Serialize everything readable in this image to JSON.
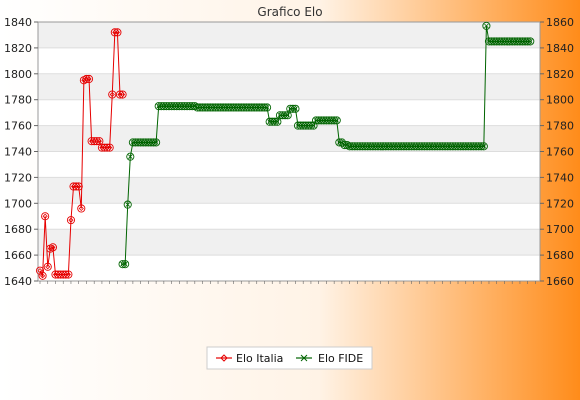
{
  "chart_data": {
    "type": "line",
    "title": "Grafico Elo",
    "ylim_left": [
      1640,
      1840
    ],
    "ylim_right": [
      1660,
      1860
    ],
    "yticks_left": [
      1640,
      1660,
      1680,
      1700,
      1720,
      1740,
      1760,
      1780,
      1800,
      1820,
      1840
    ],
    "yticks_right": [
      1660,
      1680,
      1700,
      1720,
      1740,
      1760,
      1780,
      1800,
      1820,
      1840,
      1860
    ],
    "grid": true,
    "legend_placement": "bottom-center",
    "series": [
      {
        "name": "Elo Italia",
        "axis": "left",
        "color": "#e60000",
        "x_start": 0,
        "values": [
          1648,
          1644,
          1690,
          1651,
          1665,
          1666,
          1645,
          1645,
          1645,
          1645,
          1645,
          1645,
          1687,
          1713,
          1713,
          1713,
          1696,
          1795,
          1796,
          1796,
          1748,
          1748,
          1748,
          1748,
          1743,
          1743,
          1743,
          1743,
          1784,
          1832,
          1832,
          1784,
          1784
        ]
      },
      {
        "name": "Elo FIDE",
        "axis": "right",
        "color": "#006400",
        "x_start": 32,
        "values": [
          1673,
          1673,
          1719,
          1756,
          1767,
          1767,
          1767,
          1767,
          1767,
          1767,
          1767,
          1767,
          1767,
          1767,
          1795,
          1795,
          1795,
          1795,
          1795,
          1795,
          1795,
          1795,
          1795,
          1795,
          1795,
          1795,
          1795,
          1795,
          1795,
          1794,
          1794,
          1794,
          1794,
          1794,
          1794,
          1794,
          1794,
          1794,
          1794,
          1794,
          1794,
          1794,
          1794,
          1794,
          1794,
          1794,
          1794,
          1794,
          1794,
          1794,
          1794,
          1794,
          1794,
          1794,
          1794,
          1794,
          1794,
          1783,
          1783,
          1783,
          1783,
          1788,
          1788,
          1788,
          1788,
          1793,
          1793,
          1793,
          1780,
          1780,
          1780,
          1780,
          1780,
          1780,
          1780,
          1784,
          1784,
          1784,
          1784,
          1784,
          1784,
          1784,
          1784,
          1784,
          1767,
          1767,
          1765,
          1765,
          1764,
          1764,
          1764,
          1764,
          1764,
          1764,
          1764,
          1764,
          1764,
          1764,
          1764,
          1764,
          1764,
          1764,
          1764,
          1764,
          1764,
          1764,
          1764,
          1764,
          1764,
          1764,
          1764,
          1764,
          1764,
          1764,
          1764,
          1764,
          1764,
          1764,
          1764,
          1764,
          1764,
          1764,
          1764,
          1764,
          1764,
          1764,
          1764,
          1764,
          1764,
          1764,
          1764,
          1764,
          1764,
          1764,
          1764,
          1764,
          1764,
          1764,
          1764,
          1764,
          1764,
          1857,
          1845,
          1845,
          1845,
          1845,
          1845,
          1845,
          1845,
          1845,
          1845,
          1845,
          1845,
          1845,
          1845,
          1845,
          1845,
          1845,
          1845
        ]
      }
    ],
    "x_count": 194
  },
  "legend": {
    "italia_label": "Elo Italia",
    "fide_label": "Elo FIDE"
  },
  "colors": {
    "background_start": "#ffffff",
    "background_end": "#ff8c1a",
    "plot_band": "#f2f2f2",
    "plot_bg": "#ffffff",
    "italia": "#e60000",
    "fide": "#006400"
  }
}
